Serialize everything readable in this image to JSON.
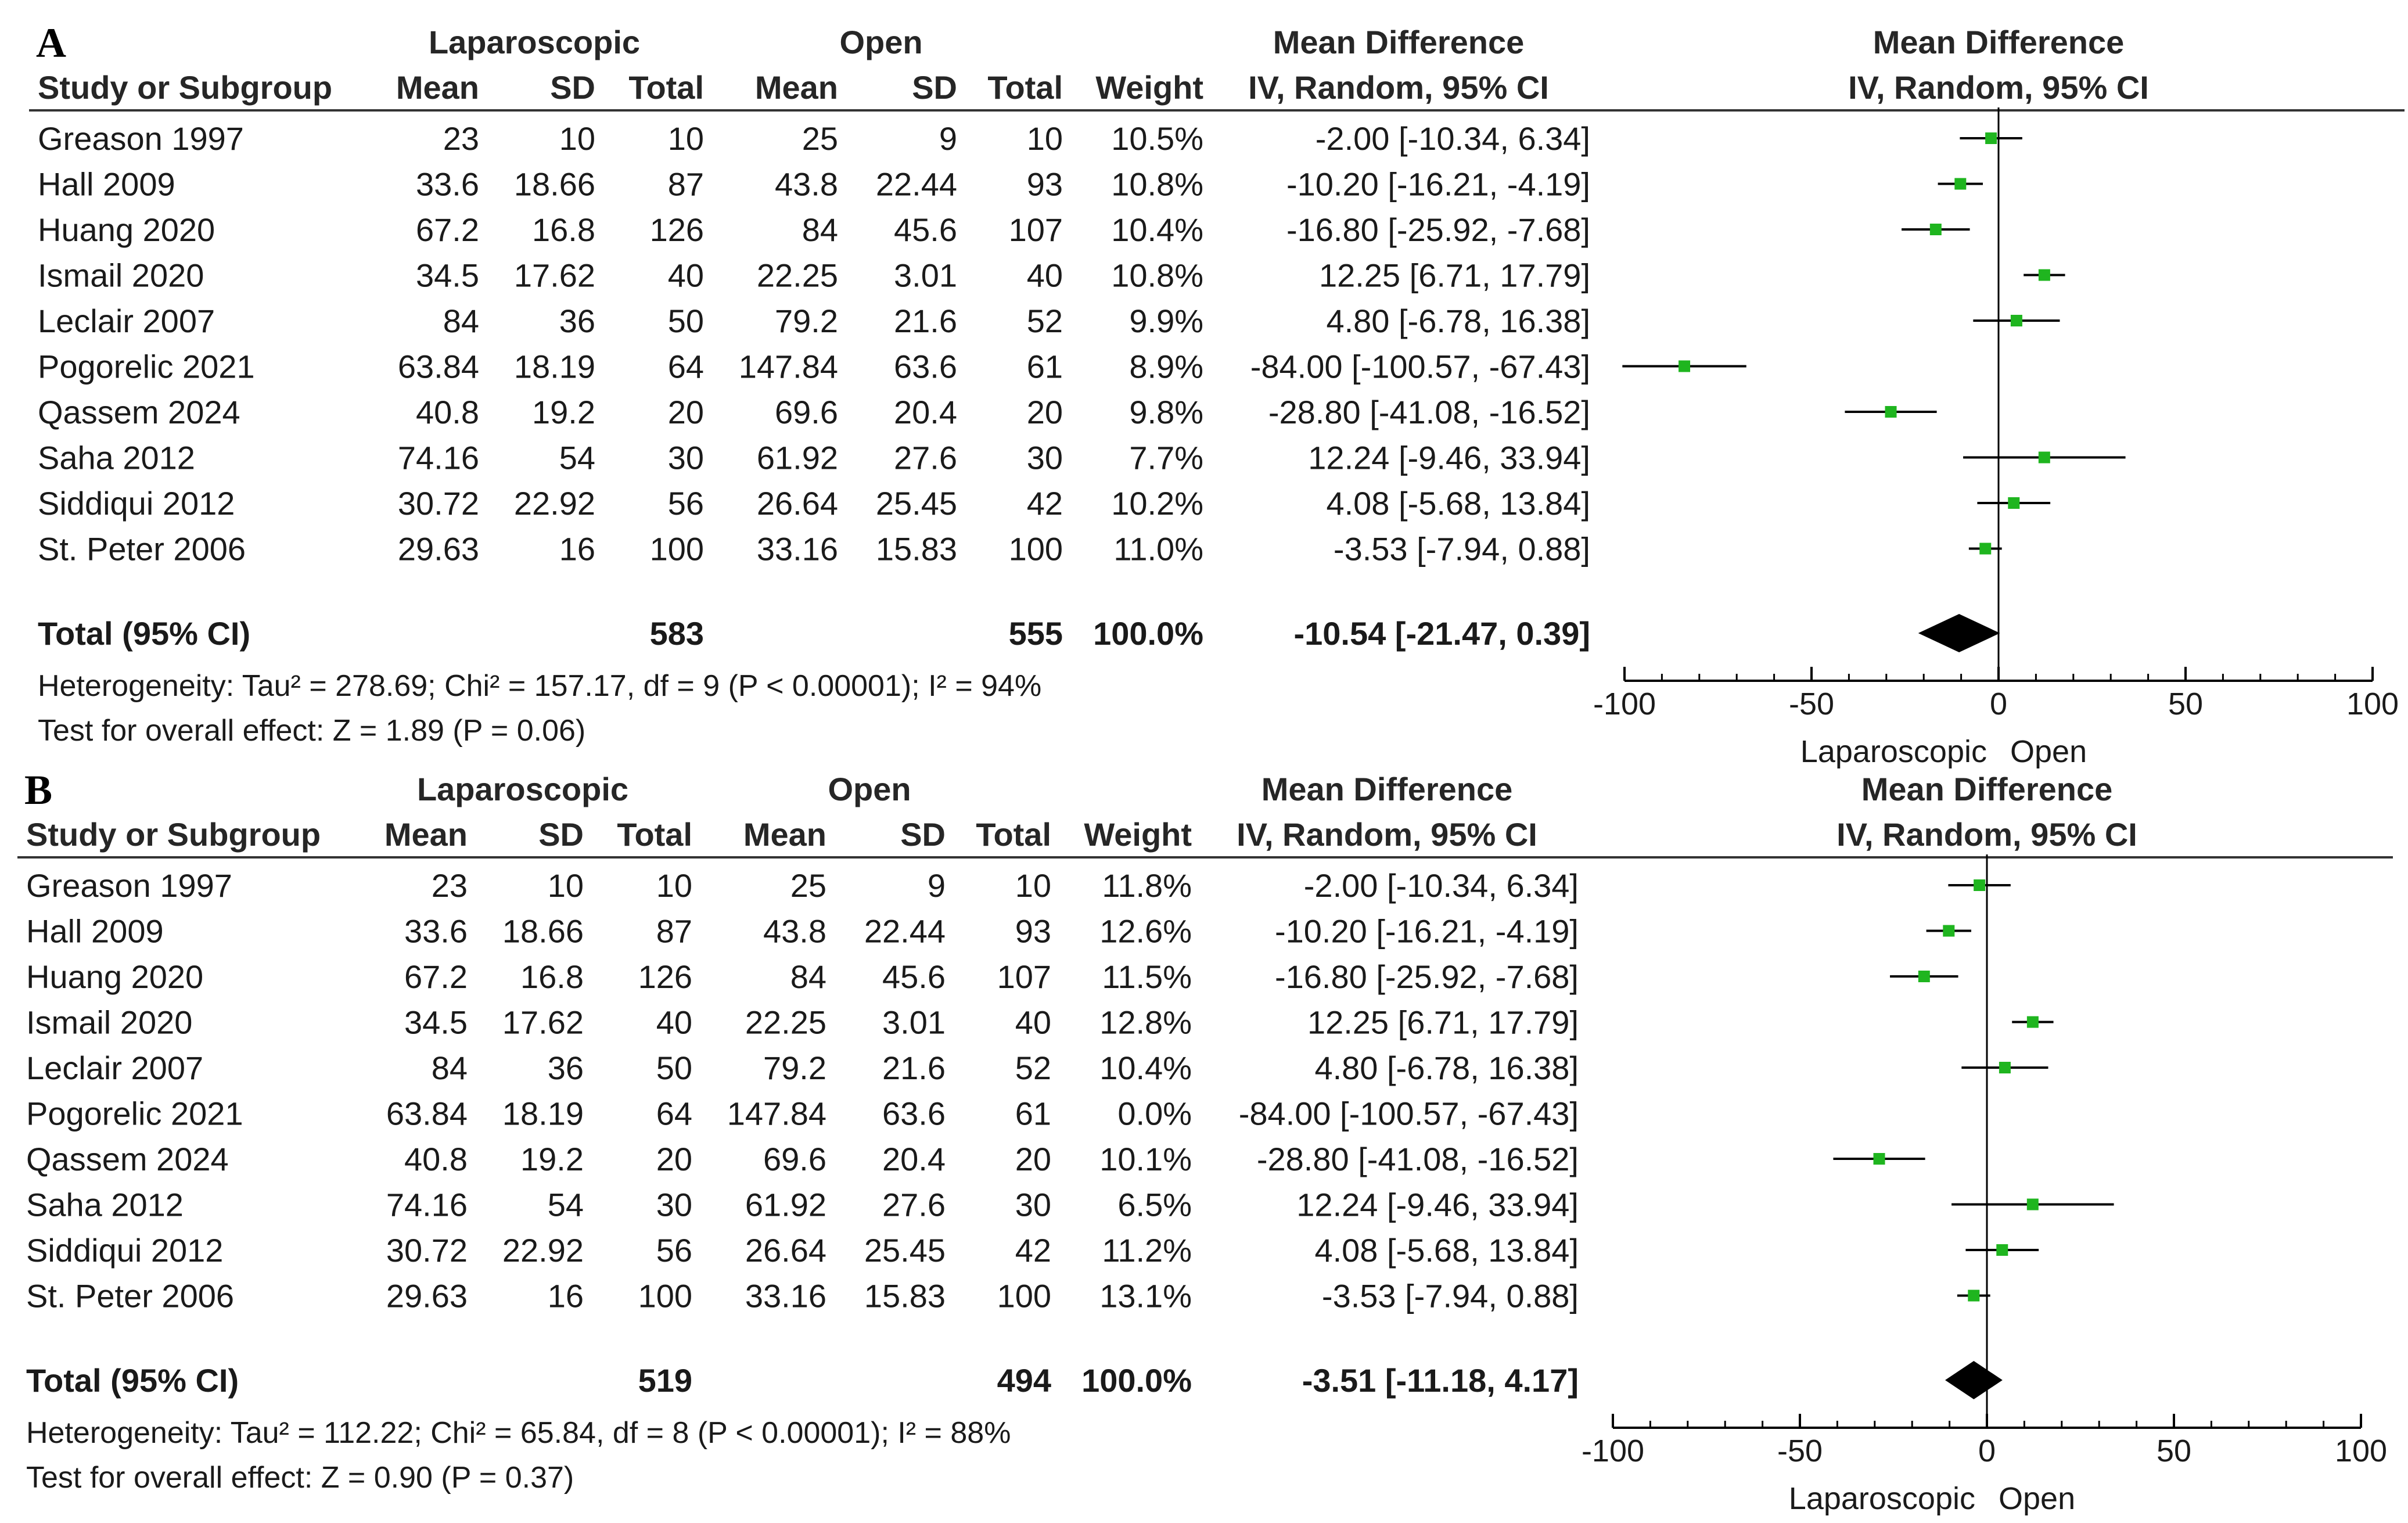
{
  "chart_data": [
    {
      "type": "forest",
      "panel_label": "A",
      "header": {
        "group1": "Laparoscopic",
        "group2": "Open",
        "effect_title": "Mean Difference",
        "method": "IV, Random, 95% CI",
        "plot_title": "Mean Difference",
        "plot_method": "IV, Random, 95% CI",
        "col_study": "Study or Subgroup",
        "col_mean": "Mean",
        "col_sd": "SD",
        "col_total": "Total",
        "col_weight": "Weight"
      },
      "studies": [
        {
          "study": "Greason 1997",
          "mean1": "23",
          "sd1": "10",
          "n1": "10",
          "mean2": "25",
          "sd2": "9",
          "n2": "10",
          "weight": "10.5%",
          "ci_text": "-2.00 [-10.34, 6.34]",
          "md": -2.0,
          "lo": -10.34,
          "hi": 6.34
        },
        {
          "study": "Hall 2009",
          "mean1": "33.6",
          "sd1": "18.66",
          "n1": "87",
          "mean2": "43.8",
          "sd2": "22.44",
          "n2": "93",
          "weight": "10.8%",
          "ci_text": "-10.20 [-16.21, -4.19]",
          "md": -10.2,
          "lo": -16.21,
          "hi": -4.19
        },
        {
          "study": "Huang 2020",
          "mean1": "67.2",
          "sd1": "16.8",
          "n1": "126",
          "mean2": "84",
          "sd2": "45.6",
          "n2": "107",
          "weight": "10.4%",
          "ci_text": "-16.80 [-25.92, -7.68]",
          "md": -16.8,
          "lo": -25.92,
          "hi": -7.68
        },
        {
          "study": "Ismail 2020",
          "mean1": "34.5",
          "sd1": "17.62",
          "n1": "40",
          "mean2": "22.25",
          "sd2": "3.01",
          "n2": "40",
          "weight": "10.8%",
          "ci_text": "12.25 [6.71, 17.79]",
          "md": 12.25,
          "lo": 6.71,
          "hi": 17.79
        },
        {
          "study": "Leclair 2007",
          "mean1": "84",
          "sd1": "36",
          "n1": "50",
          "mean2": "79.2",
          "sd2": "21.6",
          "n2": "52",
          "weight": "9.9%",
          "ci_text": "4.80 [-6.78, 16.38]",
          "md": 4.8,
          "lo": -6.78,
          "hi": 16.38
        },
        {
          "study": "Pogorelic 2021",
          "mean1": "63.84",
          "sd1": "18.19",
          "n1": "64",
          "mean2": "147.84",
          "sd2": "63.6",
          "n2": "61",
          "weight": "8.9%",
          "ci_text": "-84.00 [-100.57, -67.43]",
          "md": -84.0,
          "lo": -100.57,
          "hi": -67.43
        },
        {
          "study": "Qassem 2024",
          "mean1": "40.8",
          "sd1": "19.2",
          "n1": "20",
          "mean2": "69.6",
          "sd2": "20.4",
          "n2": "20",
          "weight": "9.8%",
          "ci_text": "-28.80 [-41.08, -16.52]",
          "md": -28.8,
          "lo": -41.08,
          "hi": -16.52
        },
        {
          "study": "Saha 2012",
          "mean1": "74.16",
          "sd1": "54",
          "n1": "30",
          "mean2": "61.92",
          "sd2": "27.6",
          "n2": "30",
          "weight": "7.7%",
          "ci_text": "12.24 [-9.46, 33.94]",
          "md": 12.24,
          "lo": -9.46,
          "hi": 33.94
        },
        {
          "study": "Siddiqui 2012",
          "mean1": "30.72",
          "sd1": "22.92",
          "n1": "56",
          "mean2": "26.64",
          "sd2": "25.45",
          "n2": "42",
          "weight": "10.2%",
          "ci_text": "4.08 [-5.68, 13.84]",
          "md": 4.08,
          "lo": -5.68,
          "hi": 13.84
        },
        {
          "study": "St. Peter 2006",
          "mean1": "29.63",
          "sd1": "16",
          "n1": "100",
          "mean2": "33.16",
          "sd2": "15.83",
          "n2": "100",
          "weight": "11.0%",
          "ci_text": "-3.53 [-7.94, 0.88]",
          "md": -3.53,
          "lo": -7.94,
          "hi": 0.88
        }
      ],
      "total": {
        "label": "Total (95% CI)",
        "n1": "583",
        "n2": "555",
        "weight": "100.0%",
        "ci_text": "-10.54 [-21.47, 0.39]",
        "md": -10.54,
        "lo": -21.47,
        "hi": 0.39
      },
      "heterogeneity": "Heterogeneity: Tau² = 278.69; Chi² = 157.17, df = 9 (P < 0.00001); I² = 94%",
      "overall_effect": "Test for overall effect: Z = 1.89 (P = 0.06)",
      "axis": {
        "min": -100,
        "max": 100,
        "ticks": [
          "-100",
          "-50",
          "0",
          "50",
          "100"
        ],
        "left_label": "Laparoscopic",
        "right_label": "Open"
      }
    },
    {
      "type": "forest",
      "panel_label": "B",
      "header": {
        "group1": "Laparoscopic",
        "group2": "Open",
        "effect_title": "Mean Difference",
        "method": "IV, Random, 95% CI",
        "plot_title": "Mean Difference",
        "plot_method": "IV, Random, 95% CI",
        "col_study": "Study or Subgroup",
        "col_mean": "Mean",
        "col_sd": "SD",
        "col_total": "Total",
        "col_weight": "Weight"
      },
      "studies": [
        {
          "study": "Greason 1997",
          "mean1": "23",
          "sd1": "10",
          "n1": "10",
          "mean2": "25",
          "sd2": "9",
          "n2": "10",
          "weight": "11.8%",
          "ci_text": "-2.00 [-10.34, 6.34]",
          "md": -2.0,
          "lo": -10.34,
          "hi": 6.34
        },
        {
          "study": "Hall 2009",
          "mean1": "33.6",
          "sd1": "18.66",
          "n1": "87",
          "mean2": "43.8",
          "sd2": "22.44",
          "n2": "93",
          "weight": "12.6%",
          "ci_text": "-10.20 [-16.21, -4.19]",
          "md": -10.2,
          "lo": -16.21,
          "hi": -4.19
        },
        {
          "study": "Huang 2020",
          "mean1": "67.2",
          "sd1": "16.8",
          "n1": "126",
          "mean2": "84",
          "sd2": "45.6",
          "n2": "107",
          "weight": "11.5%",
          "ci_text": "-16.80 [-25.92, -7.68]",
          "md": -16.8,
          "lo": -25.92,
          "hi": -7.68
        },
        {
          "study": "Ismail 2020",
          "mean1": "34.5",
          "sd1": "17.62",
          "n1": "40",
          "mean2": "22.25",
          "sd2": "3.01",
          "n2": "40",
          "weight": "12.8%",
          "ci_text": "12.25 [6.71, 17.79]",
          "md": 12.25,
          "lo": 6.71,
          "hi": 17.79
        },
        {
          "study": "Leclair 2007",
          "mean1": "84",
          "sd1": "36",
          "n1": "50",
          "mean2": "79.2",
          "sd2": "21.6",
          "n2": "52",
          "weight": "10.4%",
          "ci_text": "4.80 [-6.78, 16.38]",
          "md": 4.8,
          "lo": -6.78,
          "hi": 16.38
        },
        {
          "study": "Pogorelic 2021",
          "mean1": "63.84",
          "sd1": "18.19",
          "n1": "64",
          "mean2": "147.84",
          "sd2": "63.6",
          "n2": "61",
          "weight": "0.0%",
          "ci_text": "-84.00 [-100.57, -67.43]",
          "md": -84.0,
          "lo": -100.57,
          "hi": -67.43,
          "excluded": true
        },
        {
          "study": "Qassem 2024",
          "mean1": "40.8",
          "sd1": "19.2",
          "n1": "20",
          "mean2": "69.6",
          "sd2": "20.4",
          "n2": "20",
          "weight": "10.1%",
          "ci_text": "-28.80 [-41.08, -16.52]",
          "md": -28.8,
          "lo": -41.08,
          "hi": -16.52
        },
        {
          "study": "Saha 2012",
          "mean1": "74.16",
          "sd1": "54",
          "n1": "30",
          "mean2": "61.92",
          "sd2": "27.6",
          "n2": "30",
          "weight": "6.5%",
          "ci_text": "12.24 [-9.46, 33.94]",
          "md": 12.24,
          "lo": -9.46,
          "hi": 33.94
        },
        {
          "study": "Siddiqui 2012",
          "mean1": "30.72",
          "sd1": "22.92",
          "n1": "56",
          "mean2": "26.64",
          "sd2": "25.45",
          "n2": "42",
          "weight": "11.2%",
          "ci_text": "4.08 [-5.68, 13.84]",
          "md": 4.08,
          "lo": -5.68,
          "hi": 13.84
        },
        {
          "study": "St. Peter 2006",
          "mean1": "29.63",
          "sd1": "16",
          "n1": "100",
          "mean2": "33.16",
          "sd2": "15.83",
          "n2": "100",
          "weight": "13.1%",
          "ci_text": "-3.53 [-7.94, 0.88]",
          "md": -3.53,
          "lo": -7.94,
          "hi": 0.88
        }
      ],
      "total": {
        "label": "Total (95% CI)",
        "n1": "519",
        "n2": "494",
        "weight": "100.0%",
        "ci_text": "-3.51 [-11.18, 4.17]",
        "md": -3.51,
        "lo": -11.18,
        "hi": 4.17
      },
      "heterogeneity": "Heterogeneity: Tau² = 112.22; Chi² = 65.84, df = 8 (P < 0.00001); I² = 88%",
      "overall_effect": "Test for overall effect: Z = 0.90 (P = 0.37)",
      "axis": {
        "min": -100,
        "max": 100,
        "ticks": [
          "-100",
          "-50",
          "0",
          "50",
          "100"
        ],
        "left_label": "Laparoscopic",
        "right_label": "Open"
      }
    }
  ],
  "colors": {
    "marker": "#1fb51f",
    "ci_line": "#000000",
    "diamond": "#000000",
    "rule": "#333333",
    "text": "#1a1a1a"
  }
}
